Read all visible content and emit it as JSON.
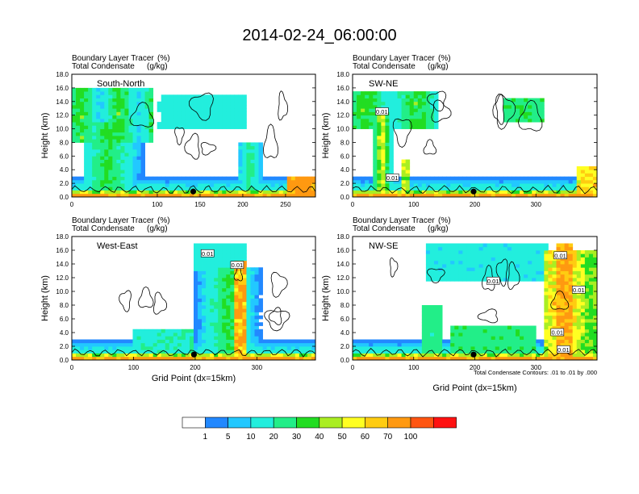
{
  "title": "2014-02-24_06:00:00",
  "contour_note": "Total Condensate Contours: .01 to .01 by .000",
  "colorbar": {
    "colors": [
      "#ffffff",
      "#2288ff",
      "#22c8ff",
      "#22eedd",
      "#22ee88",
      "#22dd22",
      "#aaee22",
      "#ffff22",
      "#ffcc11",
      "#ff9911",
      "#ff5511",
      "#ff1111"
    ],
    "levels": [
      "1",
      "5",
      "10",
      "20",
      "30",
      "40",
      "50",
      "60",
      "70",
      "100"
    ]
  },
  "chart_data": [
    {
      "type": "heatmap",
      "panel": "South-North",
      "subtitle_left": [
        "Boundary Layer Tracer",
        "Total Condensate"
      ],
      "subtitle_right": [
        "(%)",
        "(g/kg)"
      ],
      "ylabel": "Height (km)",
      "xlabel": "",
      "xlim": [
        0,
        285
      ],
      "ylim": [
        0,
        18
      ],
      "xticks": [
        "0",
        "100",
        "150",
        "200",
        "250"
      ],
      "xtick_values": [
        0,
        100,
        150,
        200,
        250
      ],
      "yticks": [
        "0.0",
        "2.0",
        "4.0",
        "6.0",
        "8.0",
        "10.0",
        "12.0",
        "14.0",
        "16.0",
        "18.0"
      ],
      "ytick_values": [
        0,
        2,
        4,
        6,
        8,
        10,
        12,
        14,
        16,
        18
      ],
      "marker": {
        "x": 142,
        "y": 0.8
      }
    },
    {
      "type": "heatmap",
      "panel": "SW-NE",
      "subtitle_left": [
        "Boundary Layer Tracer",
        "Total Condensate"
      ],
      "subtitle_right": [
        "(%)",
        "(g/kg)"
      ],
      "ylabel": "Height (km)",
      "xlabel": "",
      "xlim": [
        0,
        400
      ],
      "ylim": [
        0,
        18
      ],
      "xticks": [
        "0",
        "100",
        "200",
        "300"
      ],
      "xtick_values": [
        0,
        100,
        200,
        300
      ],
      "yticks": [
        "0.0",
        "2.0",
        "4.0",
        "6.0",
        "8.0",
        "10.0",
        "12.0",
        "14.0",
        "16.0",
        "18.0"
      ],
      "ytick_values": [
        0,
        2,
        4,
        6,
        8,
        10,
        12,
        14,
        16,
        18
      ],
      "marker": {
        "x": 198,
        "y": 0.8
      },
      "contour_labels": [
        {
          "text": "0.01",
          "x": 48,
          "y": 12.5
        },
        {
          "text": "0.01",
          "x": 65,
          "y": 2.8
        }
      ]
    },
    {
      "type": "heatmap",
      "panel": "West-East",
      "subtitle_left": [
        "Boundary Layer Tracer",
        "Total Condensate"
      ],
      "subtitle_right": [
        "(%)",
        "(g/kg)"
      ],
      "ylabel": "Height (km)",
      "xlabel": "Grid Point (dx=15km)",
      "xlim": [
        0,
        395
      ],
      "ylim": [
        0,
        18
      ],
      "xticks": [
        "0",
        "100",
        "200",
        "300"
      ],
      "xtick_values": [
        0,
        100,
        200,
        300
      ],
      "yticks": [
        "0.0",
        "2.0",
        "4.0",
        "6.0",
        "8.0",
        "10.0",
        "12.0",
        "14.0",
        "16.0",
        "18.0"
      ],
      "ytick_values": [
        0,
        2,
        4,
        6,
        8,
        10,
        12,
        14,
        16,
        18
      ],
      "marker": {
        "x": 198,
        "y": 0.8
      },
      "contour_labels": [
        {
          "text": "0.01",
          "x": 220,
          "y": 15.5
        },
        {
          "text": "0.01",
          "x": 268,
          "y": 13.8
        }
      ]
    },
    {
      "type": "heatmap",
      "panel": "NW-SE",
      "subtitle_left": [
        "Boundary Layer Tracer",
        "Total Condensate"
      ],
      "subtitle_right": [
        "(%)",
        "(g/kg)"
      ],
      "ylabel": "Height (km)",
      "xlabel": "Grid Point (dx=15km)",
      "xlim": [
        0,
        400
      ],
      "ylim": [
        0,
        18
      ],
      "xticks": [
        "0",
        "100",
        "200",
        "300"
      ],
      "xtick_values": [
        0,
        100,
        200,
        300
      ],
      "yticks": [
        "0.0",
        "2.0",
        "4.0",
        "6.0",
        "8.0",
        "10.0",
        "12.0",
        "14.0",
        "16.0",
        "18.0"
      ],
      "ytick_values": [
        0,
        2,
        4,
        6,
        8,
        10,
        12,
        14,
        16,
        18
      ],
      "marker": {
        "x": 198,
        "y": 0.8
      },
      "contour_labels": [
        {
          "text": "0.01",
          "x": 340,
          "y": 15.2
        },
        {
          "text": "0.01",
          "x": 230,
          "y": 11.5
        },
        {
          "text": "0.01",
          "x": 370,
          "y": 10.2
        },
        {
          "text": "0.01",
          "x": 335,
          "y": 4.0
        },
        {
          "text": "0.01",
          "x": 345,
          "y": 1.5
        }
      ]
    }
  ]
}
